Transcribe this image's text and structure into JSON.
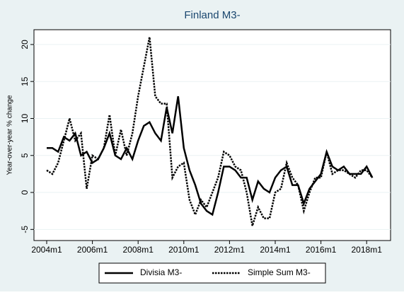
{
  "chart_data": {
    "type": "line",
    "title": "Finland M3-",
    "ylabel": "Year-over-year % change",
    "x": [
      "2004m1",
      "2004m4",
      "2004m7",
      "2004m10",
      "2005m1",
      "2005m4",
      "2005m7",
      "2005m10",
      "2006m1",
      "2006m4",
      "2006m7",
      "2006m10",
      "2007m1",
      "2007m4",
      "2007m7",
      "2007m10",
      "2008m1",
      "2008m4",
      "2008m7",
      "2008m10",
      "2009m1",
      "2009m4",
      "2009m7",
      "2009m10",
      "2010m1",
      "2010m4",
      "2010m7",
      "2010m10",
      "2011m1",
      "2011m4",
      "2011m7",
      "2011m10",
      "2012m1",
      "2012m4",
      "2012m7",
      "2012m10",
      "2013m1",
      "2013m4",
      "2013m7",
      "2013m10",
      "2014m1",
      "2014m4",
      "2014m7",
      "2014m10",
      "2015m1",
      "2015m4",
      "2015m7",
      "2015m10",
      "2016m1",
      "2016m4",
      "2016m7",
      "2016m10",
      "2017m1",
      "2017m4",
      "2017m7",
      "2017m10",
      "2018m1",
      "2018m4"
    ],
    "series": [
      {
        "name": "Divisia M3-",
        "color": "#000000",
        "dash": "solid",
        "values": [
          6,
          6,
          5.5,
          7.5,
          7,
          8,
          5,
          5.5,
          4,
          4.5,
          6,
          8,
          5,
          4.5,
          6,
          4.5,
          7,
          9,
          9.5,
          8,
          7,
          11.5,
          8,
          13,
          6,
          3,
          1,
          -1.5,
          -2.5,
          -3,
          0,
          3.5,
          3.5,
          3,
          2,
          2,
          -1,
          1.5,
          0.5,
          0,
          2,
          3,
          3.5,
          1,
          1,
          -1.5,
          0.5,
          1.5,
          2.5,
          5.5,
          3.5,
          3,
          3.5,
          2.5,
          2.5,
          2.5,
          3.5,
          2
        ]
      },
      {
        "name": "Simple Sum M3-",
        "color": "#000000",
        "dash": "dotted",
        "values": [
          3,
          2.5,
          4,
          7,
          10,
          7,
          8,
          0.5,
          5,
          4.5,
          6,
          10.5,
          5,
          8.5,
          5,
          8,
          13,
          17,
          21,
          13,
          12,
          12,
          2,
          3.5,
          4,
          -1,
          -3,
          -1,
          -2,
          0,
          2,
          5.5,
          5,
          3.5,
          3,
          0,
          -4.5,
          -2,
          -3.5,
          -3.5,
          0,
          0.5,
          4,
          2,
          1,
          -2.5,
          0,
          2,
          2,
          5.5,
          2.5,
          3,
          3,
          2.5,
          2,
          3,
          3,
          2
        ]
      }
    ],
    "xticks": [
      "2004m1",
      "2006m1",
      "2008m1",
      "2010m1",
      "2012m1",
      "2014m1",
      "2016m1",
      "2018m1"
    ],
    "ylim": [
      -6.5,
      22
    ],
    "yticks": [
      -5,
      0,
      5,
      10,
      15,
      20
    ],
    "grid": true,
    "legend": "bottom"
  }
}
